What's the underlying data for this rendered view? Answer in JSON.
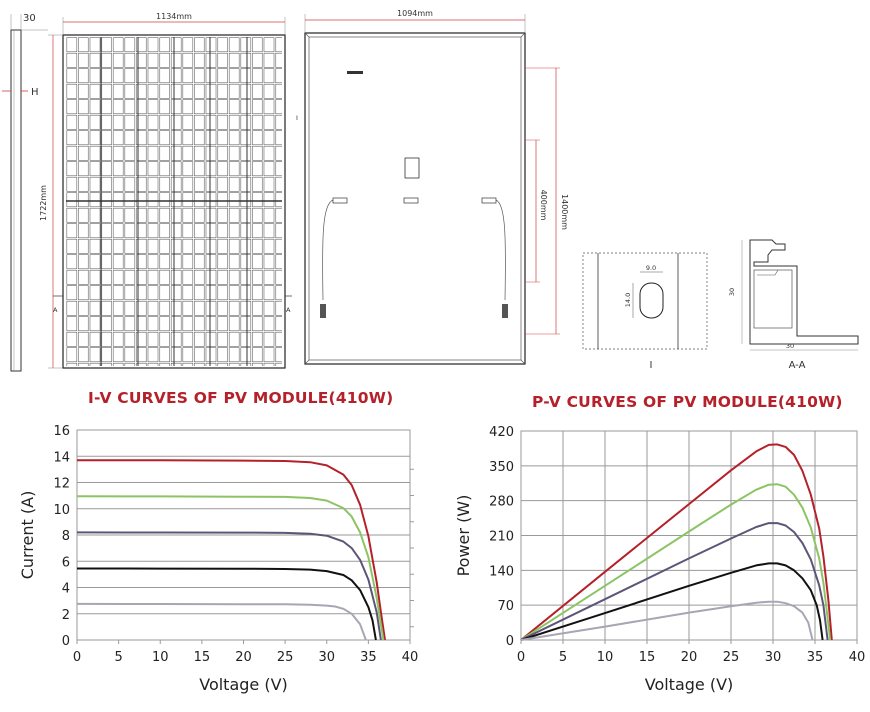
{
  "drawing": {
    "side_width": "30",
    "side_height_label": "H",
    "front_width": "1134mm",
    "front_height": "1722mm",
    "section_marker": "A",
    "back_width": "1094mm",
    "back_marker": "I",
    "mount_spacing": "1400mm",
    "inner_spacing": "400mm",
    "detail_I": {
      "width": "9.0",
      "height": "14.0",
      "label": "I"
    },
    "detail_AA": {
      "height": "30",
      "width": "30",
      "label": "A-A"
    }
  },
  "chart_data": [
    {
      "type": "line",
      "title": "I-V CURVES OF PV MODULE(410W)",
      "xlabel": "Voltage (V)",
      "ylabel": "Current (A)",
      "xlim": [
        0,
        40
      ],
      "ylim": [
        0,
        16
      ],
      "xticks": [
        "0",
        "5",
        "10",
        "15",
        "20",
        "25",
        "30",
        "35",
        "40"
      ],
      "yticks": [
        "0",
        "2",
        "4",
        "6",
        "8",
        "10",
        "12",
        "14",
        "16"
      ],
      "grid": "horizontal",
      "series": [
        {
          "color": "#b5212a",
          "x": [
            0,
            10,
            20,
            25,
            28,
            30,
            32,
            33,
            34,
            35,
            36,
            36.6,
            37.0
          ],
          "y": [
            13.7,
            13.69,
            13.67,
            13.64,
            13.55,
            13.3,
            12.6,
            11.8,
            10.3,
            7.9,
            4.4,
            1.7,
            0
          ]
        },
        {
          "color": "#8cc463",
          "x": [
            0,
            10,
            20,
            25,
            28,
            30,
            32,
            33,
            34,
            35,
            36,
            36.4,
            36.8
          ],
          "y": [
            10.95,
            10.94,
            10.92,
            10.9,
            10.82,
            10.62,
            10.05,
            9.4,
            8.2,
            6.3,
            3.2,
            1.6,
            0
          ]
        },
        {
          "color": "#5b5678",
          "x": [
            0,
            10,
            20,
            25,
            28,
            30,
            32,
            33,
            34,
            35,
            36,
            36.5
          ],
          "y": [
            8.2,
            8.19,
            8.18,
            8.16,
            8.1,
            7.95,
            7.5,
            7.0,
            6.1,
            4.6,
            2.1,
            0
          ]
        },
        {
          "color": "#111111",
          "x": [
            0,
            10,
            20,
            25,
            28,
            30,
            32,
            33,
            34,
            35,
            35.5,
            35.9
          ],
          "y": [
            5.45,
            5.44,
            5.43,
            5.41,
            5.36,
            5.25,
            4.95,
            4.55,
            3.8,
            2.5,
            1.5,
            0
          ]
        },
        {
          "color": "#a9a5b5",
          "x": [
            0,
            10,
            20,
            25,
            28,
            30,
            31,
            32,
            33,
            34,
            34.7
          ],
          "y": [
            2.75,
            2.74,
            2.73,
            2.72,
            2.69,
            2.62,
            2.55,
            2.38,
            2.0,
            1.2,
            0
          ]
        }
      ]
    },
    {
      "type": "line",
      "title": "P-V CURVES OF PV MODULE(410W)",
      "xlabel": "Voltage (V)",
      "ylabel": "Power (W)",
      "xlim": [
        0,
        40
      ],
      "ylim": [
        0,
        420
      ],
      "xticks": [
        "0",
        "5",
        "10",
        "15",
        "20",
        "25",
        "30",
        "35",
        "40"
      ],
      "yticks": [
        "0",
        "70",
        "140",
        "210",
        "280",
        "350",
        "420"
      ],
      "grid": "both",
      "series": [
        {
          "color": "#b5212a",
          "x": [
            0,
            10,
            20,
            25,
            28,
            29.5,
            30.5,
            31.5,
            32.5,
            33.5,
            34.5,
            35.5,
            36,
            36.6,
            37.0
          ],
          "y": [
            0,
            137,
            273,
            341,
            379,
            392,
            393,
            388,
            372,
            340,
            292,
            224,
            168,
            80,
            0
          ]
        },
        {
          "color": "#8cc463",
          "x": [
            0,
            10,
            20,
            25,
            28,
            29.5,
            30.5,
            31.5,
            32.5,
            33.5,
            34.5,
            35.5,
            36,
            36.4,
            36.8
          ],
          "y": [
            0,
            109,
            218,
            272,
            302,
            312,
            313,
            308,
            292,
            266,
            226,
            164,
            115,
            58,
            0
          ]
        },
        {
          "color": "#5b5678",
          "x": [
            0,
            10,
            20,
            25,
            28,
            29.5,
            30.5,
            31.5,
            32.5,
            33.5,
            34.5,
            35.5,
            36,
            36.5
          ],
          "y": [
            0,
            82,
            164,
            204,
            227,
            235,
            235,
            230,
            217,
            195,
            162,
            110,
            70,
            0
          ]
        },
        {
          "color": "#111111",
          "x": [
            0,
            10,
            20,
            25,
            28,
            29.5,
            30.5,
            31.5,
            32.5,
            33.5,
            34.5,
            35.2,
            35.6,
            35.9
          ],
          "y": [
            0,
            54,
            109,
            135,
            150,
            154,
            154,
            150,
            140,
            124,
            100,
            70,
            40,
            0
          ]
        },
        {
          "color": "#a9a5b5",
          "x": [
            0,
            10,
            20,
            25,
            28,
            29.5,
            30.5,
            31.5,
            32.5,
            33.5,
            34.2,
            34.7
          ],
          "y": [
            0,
            27,
            55,
            68,
            75,
            77,
            77,
            74,
            68,
            55,
            35,
            0
          ]
        }
      ]
    }
  ]
}
